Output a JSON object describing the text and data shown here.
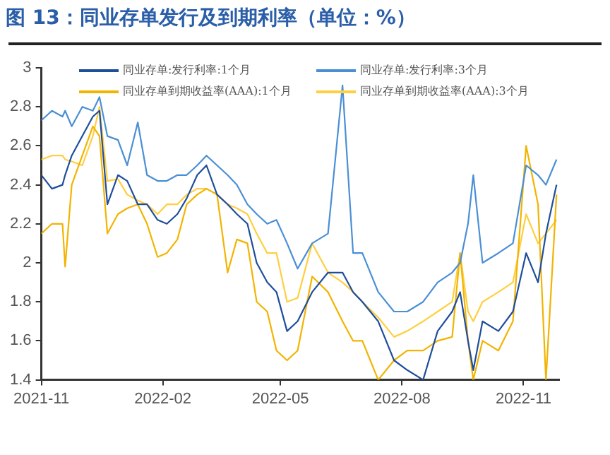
{
  "chart_data": {
    "type": "line",
    "title": "图 13：同业存单发行及到期利率（单位：%）",
    "x": [
      "2021-11-01",
      "2021-11-09",
      "2021-11-17",
      "2021-11-19",
      "2021-11-24",
      "2021-12-02",
      "2021-12-10",
      "2021-12-15",
      "2021-12-21",
      "2021-12-29",
      "2022-01-05",
      "2022-01-13",
      "2022-01-20",
      "2022-01-28",
      "2022-02-04",
      "2022-02-12",
      "2022-02-19",
      "2022-02-27",
      "2022-03-06",
      "2022-03-14",
      "2022-03-22",
      "2022-03-29",
      "2022-04-06",
      "2022-04-13",
      "2022-04-21",
      "2022-04-28",
      "2022-05-06",
      "2022-05-14",
      "2022-05-25",
      "2022-06-06",
      "2022-06-17",
      "2022-06-25",
      "2022-07-02",
      "2022-07-14",
      "2022-07-26",
      "2022-08-05",
      "2022-08-17",
      "2022-08-28",
      "2022-09-08",
      "2022-09-14",
      "2022-09-20",
      "2022-09-24",
      "2022-10-01",
      "2022-10-13",
      "2022-10-24",
      "2022-11-03",
      "2022-11-12",
      "2022-11-18",
      "2022-11-26"
    ],
    "series": [
      {
        "name": "同业存单:发行利率:1个月",
        "color": "#1f4e9c",
        "values": [
          2.45,
          2.38,
          2.4,
          2.45,
          2.55,
          2.65,
          2.75,
          2.78,
          2.3,
          2.45,
          2.42,
          2.3,
          2.3,
          2.22,
          2.2,
          2.25,
          2.33,
          2.45,
          2.5,
          2.35,
          2.3,
          2.25,
          2.2,
          2.0,
          1.9,
          1.85,
          1.65,
          1.7,
          1.85,
          1.95,
          1.95,
          1.85,
          1.8,
          1.7,
          1.5,
          1.45,
          1.4,
          1.65,
          1.75,
          1.85,
          1.6,
          1.45,
          1.7,
          1.65,
          1.75,
          2.05,
          1.9,
          2.15,
          2.4
        ]
      },
      {
        "name": "同业存单:发行利率:3个月",
        "color": "#4a8fd6",
        "values": [
          2.73,
          2.78,
          2.75,
          2.78,
          2.7,
          2.8,
          2.78,
          2.85,
          2.65,
          2.63,
          2.5,
          2.72,
          2.45,
          2.42,
          2.42,
          2.45,
          2.45,
          2.5,
          2.55,
          2.5,
          2.45,
          2.4,
          2.3,
          2.25,
          2.2,
          2.22,
          2.1,
          1.97,
          2.1,
          2.15,
          2.91,
          2.05,
          2.05,
          1.85,
          1.75,
          1.75,
          1.8,
          1.9,
          1.95,
          2.0,
          2.2,
          2.45,
          2.0,
          2.05,
          2.1,
          2.5,
          2.45,
          2.4,
          2.53
        ]
      },
      {
        "name": "同业存单到期收益率(AAA):1个月",
        "color": "#f2b400",
        "values": [
          2.15,
          2.2,
          2.2,
          1.98,
          2.4,
          2.55,
          2.7,
          2.65,
          2.15,
          2.25,
          2.28,
          2.3,
          2.2,
          2.03,
          2.05,
          2.12,
          2.3,
          2.35,
          2.38,
          2.35,
          1.95,
          2.12,
          2.1,
          1.8,
          1.75,
          1.55,
          1.5,
          1.55,
          1.93,
          1.85,
          1.7,
          1.6,
          1.6,
          1.4,
          1.5,
          1.55,
          1.55,
          1.6,
          1.62,
          2.05,
          1.6,
          1.4,
          1.6,
          1.55,
          1.7,
          2.6,
          2.3,
          1.4,
          2.35
        ]
      },
      {
        "name": "同业存单到期收益率(AAA):3个月",
        "color": "#ffcf3f",
        "values": [
          2.53,
          2.55,
          2.55,
          2.53,
          2.52,
          2.5,
          2.65,
          2.8,
          2.42,
          2.43,
          2.35,
          2.32,
          2.3,
          2.25,
          2.3,
          2.3,
          2.35,
          2.38,
          2.38,
          2.35,
          2.3,
          2.28,
          2.25,
          2.15,
          2.05,
          2.05,
          1.8,
          1.82,
          2.1,
          1.95,
          1.9,
          1.85,
          1.8,
          1.72,
          1.62,
          1.65,
          1.7,
          1.75,
          1.8,
          2.05,
          1.75,
          1.7,
          1.8,
          1.85,
          1.9,
          2.25,
          2.1,
          2.15,
          2.22
        ]
      }
    ],
    "xlim": [
      "2021-11-01",
      "2022-11-28"
    ],
    "xticks": [
      "2021-11",
      "2022-02",
      "2022-05",
      "2022-08",
      "2022-11"
    ],
    "ylim": [
      1.4,
      3
    ],
    "yticks": [
      1.4,
      1.6,
      1.8,
      2,
      2.2,
      2.4,
      2.6,
      2.8,
      3
    ],
    "legend": "top",
    "line_style": "solid"
  }
}
